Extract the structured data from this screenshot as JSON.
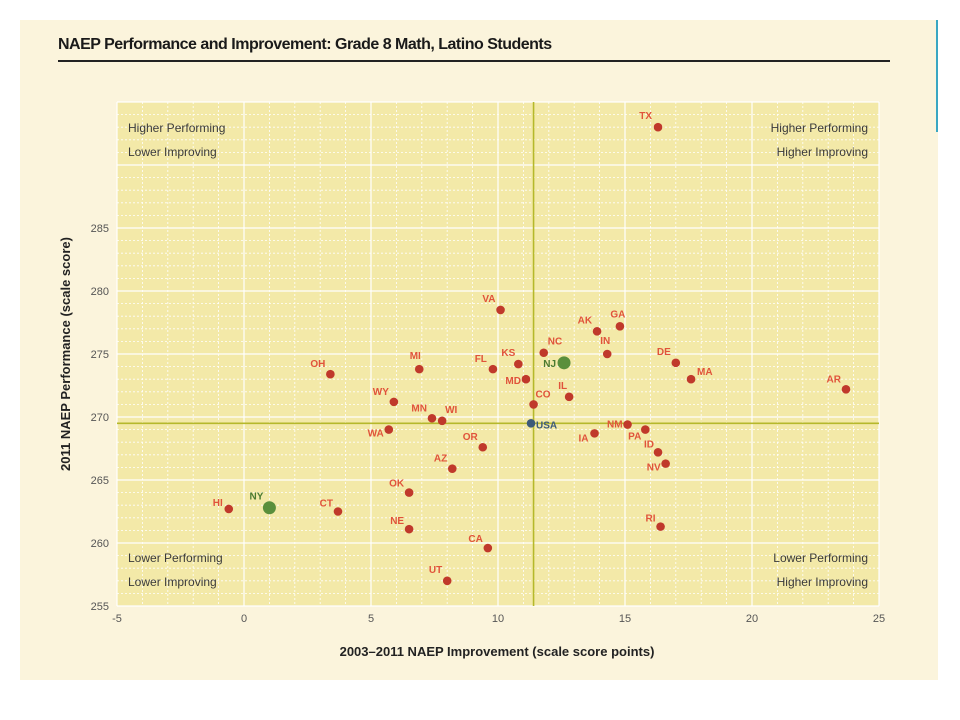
{
  "chart_data": {
    "type": "scatter",
    "title": "NAEP Performance and Improvement: Grade 8 Math, Latino Students",
    "xlabel": "2003–2011 NAEP Improvement (scale score points)",
    "ylabel": "2011 NAEP Performance (scale score)",
    "xlim": [
      -5,
      25
    ],
    "ylim": [
      255,
      295
    ],
    "xticks": [
      -5,
      0,
      5,
      10,
      15,
      20,
      25
    ],
    "yticks": [
      255,
      260,
      265,
      270,
      275,
      280,
      285
    ],
    "grid": true,
    "reference_lines": {
      "x": 11.4,
      "y": 269.5
    },
    "quadrant_labels": {
      "top_left": [
        "Higher Performing",
        "Lower Improving"
      ],
      "top_right": [
        "Higher Performing",
        "Higher Improving"
      ],
      "bottom_left": [
        "Lower Performing",
        "Lower Improving"
      ],
      "bottom_right": [
        "Lower Performing",
        "Higher Improving"
      ]
    },
    "colors": {
      "state": "#c0392b",
      "highlight": "#5a8f3c",
      "national": "#3d5a7a",
      "reference": "#b5b82b",
      "label": "#e0533a",
      "highlight_label": "#4a7a30",
      "national_label": "#3d5a7a"
    },
    "points": [
      {
        "label": "TX",
        "x": 16.3,
        "y": 293.0,
        "group": "state"
      },
      {
        "label": "VA",
        "x": 10.1,
        "y": 278.5,
        "group": "state"
      },
      {
        "label": "AK",
        "x": 13.9,
        "y": 276.8,
        "group": "state"
      },
      {
        "label": "GA",
        "x": 14.8,
        "y": 277.2,
        "group": "state"
      },
      {
        "label": "NC",
        "x": 11.8,
        "y": 275.1,
        "group": "state"
      },
      {
        "label": "IN",
        "x": 14.3,
        "y": 275.0,
        "group": "state"
      },
      {
        "label": "NJ",
        "x": 12.6,
        "y": 274.3,
        "group": "highlight"
      },
      {
        "label": "KS",
        "x": 10.8,
        "y": 274.2,
        "group": "state"
      },
      {
        "label": "FL",
        "x": 9.8,
        "y": 273.8,
        "group": "state"
      },
      {
        "label": "MD",
        "x": 11.1,
        "y": 273.0,
        "group": "state"
      },
      {
        "label": "DE",
        "x": 17.0,
        "y": 274.3,
        "group": "state"
      },
      {
        "label": "MA",
        "x": 17.6,
        "y": 273.0,
        "group": "state"
      },
      {
        "label": "AR",
        "x": 23.7,
        "y": 272.2,
        "group": "state"
      },
      {
        "label": "OH",
        "x": 3.4,
        "y": 273.4,
        "group": "state"
      },
      {
        "label": "MI",
        "x": 6.9,
        "y": 273.8,
        "group": "state"
      },
      {
        "label": "IL",
        "x": 12.8,
        "y": 271.6,
        "group": "state"
      },
      {
        "label": "WY",
        "x": 5.9,
        "y": 271.2,
        "group": "state"
      },
      {
        "label": "CO",
        "x": 11.4,
        "y": 271.0,
        "group": "state"
      },
      {
        "label": "MN",
        "x": 7.4,
        "y": 269.9,
        "group": "state"
      },
      {
        "label": "WI",
        "x": 7.8,
        "y": 269.7,
        "group": "state"
      },
      {
        "label": "USA",
        "x": 11.3,
        "y": 269.5,
        "group": "national"
      },
      {
        "label": "NM",
        "x": 15.1,
        "y": 269.4,
        "group": "state"
      },
      {
        "label": "PA",
        "x": 15.8,
        "y": 269.0,
        "group": "state"
      },
      {
        "label": "IA",
        "x": 13.8,
        "y": 268.7,
        "group": "state"
      },
      {
        "label": "WA",
        "x": 5.7,
        "y": 269.0,
        "group": "state"
      },
      {
        "label": "OR",
        "x": 9.4,
        "y": 267.6,
        "group": "state"
      },
      {
        "label": "ID",
        "x": 16.3,
        "y": 267.2,
        "group": "state"
      },
      {
        "label": "NV",
        "x": 16.6,
        "y": 266.3,
        "group": "state"
      },
      {
        "label": "AZ",
        "x": 8.2,
        "y": 265.9,
        "group": "state"
      },
      {
        "label": "OK",
        "x": 6.5,
        "y": 264.0,
        "group": "state"
      },
      {
        "label": "HI",
        "x": -0.6,
        "y": 262.7,
        "group": "state"
      },
      {
        "label": "NY",
        "x": 1.0,
        "y": 262.8,
        "group": "highlight"
      },
      {
        "label": "CT",
        "x": 3.7,
        "y": 262.5,
        "group": "state"
      },
      {
        "label": "NE",
        "x": 6.5,
        "y": 261.1,
        "group": "state"
      },
      {
        "label": "RI",
        "x": 16.4,
        "y": 261.3,
        "group": "state"
      },
      {
        "label": "CA",
        "x": 9.6,
        "y": 259.6,
        "group": "state"
      },
      {
        "label": "UT",
        "x": 8.0,
        "y": 257.0,
        "group": "state"
      }
    ]
  }
}
